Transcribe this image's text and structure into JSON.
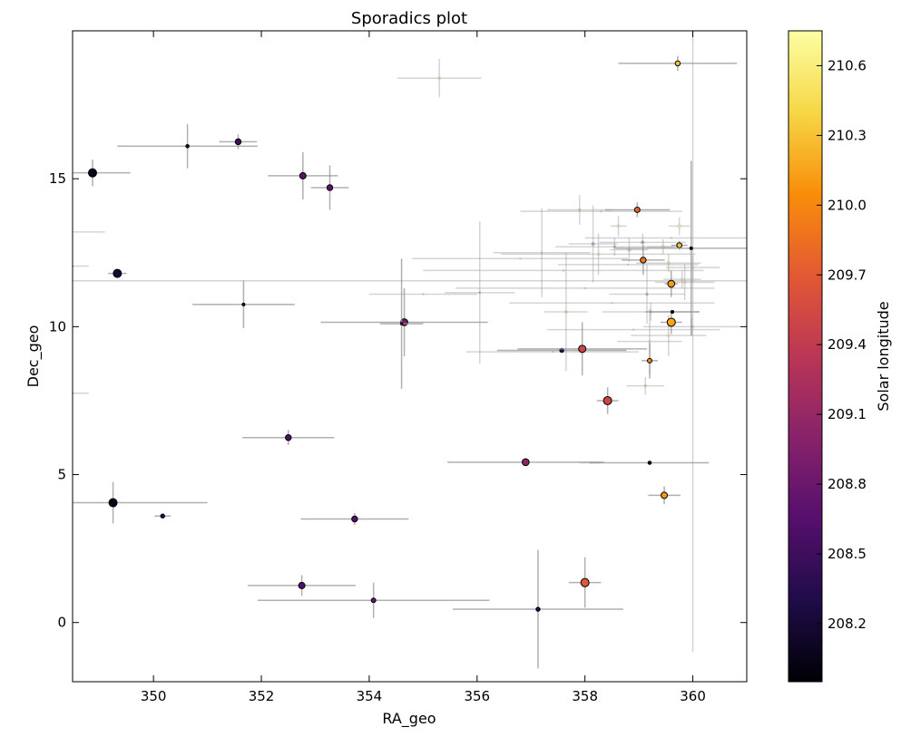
{
  "chart_data": {
    "type": "scatter",
    "title": "Sporadics plot",
    "xlabel": "RA_geo",
    "ylabel": "Dec_geo",
    "xlim": [
      348.5,
      361.0
    ],
    "ylim": [
      -2.0,
      20.0
    ],
    "xticks": [
      "350",
      "352",
      "354",
      "356",
      "358",
      "360"
    ],
    "yticks": [
      "0",
      "5",
      "10",
      "15"
    ],
    "colorbar": {
      "label": "Solar longitude",
      "range": [
        207.95,
        210.75
      ],
      "ticks": [
        "208.2",
        "208.5",
        "208.8",
        "209.1",
        "209.4",
        "209.7",
        "210.0",
        "210.3",
        "210.6"
      ]
    },
    "points": [
      {
        "ra": 348.87,
        "dec": 15.2,
        "sl": 208.05,
        "size": 4.5,
        "xerr": 0.7,
        "yerr": 0.45,
        "faint": false
      },
      {
        "ra": 349.33,
        "dec": 11.8,
        "sl": 208.2,
        "size": 4.5,
        "xerr": 0.17,
        "yerr": 0.0,
        "faint": false
      },
      {
        "ra": 349.25,
        "dec": 4.05,
        "sl": 208.05,
        "size": 4.5,
        "xerr": 1.75,
        "yerr": 0.7,
        "faint": false
      },
      {
        "ra": 350.17,
        "dec": 3.6,
        "sl": 208.3,
        "size": 2.2,
        "xerr": 0.15,
        "yerr": 0.0,
        "faint": false
      },
      {
        "ra": 350.63,
        "dec": 16.1,
        "sl": 208.3,
        "size": 1.8,
        "xerr": 1.3,
        "yerr": 0.75,
        "faint": false
      },
      {
        "ra": 351.57,
        "dec": 16.25,
        "sl": 208.5,
        "size": 3.2,
        "xerr": 0.35,
        "yerr": 0.25,
        "faint": false
      },
      {
        "ra": 351.67,
        "dec": 10.75,
        "sl": 208.3,
        "size": 1.5,
        "xerr": 0.95,
        "yerr": 0.8,
        "faint": false
      },
      {
        "ra": 352.5,
        "dec": 6.25,
        "sl": 208.6,
        "size": 3.2,
        "xerr": 0.85,
        "yerr": 0.25,
        "faint": false
      },
      {
        "ra": 352.77,
        "dec": 15.1,
        "sl": 208.7,
        "size": 3.5,
        "xerr": 0.65,
        "yerr": 0.8,
        "faint": false
      },
      {
        "ra": 352.75,
        "dec": 1.25,
        "sl": 208.65,
        "size": 3.5,
        "xerr": 1.0,
        "yerr": 0.35,
        "faint": false
      },
      {
        "ra": 353.27,
        "dec": 14.7,
        "sl": 208.7,
        "size": 3.2,
        "xerr": 0.35,
        "yerr": 0.75,
        "faint": false
      },
      {
        "ra": 353.73,
        "dec": 3.5,
        "sl": 208.65,
        "size": 3.2,
        "xerr": 1.0,
        "yerr": 0.2,
        "faint": false
      },
      {
        "ra": 354.08,
        "dec": 0.75,
        "sl": 208.75,
        "size": 2.5,
        "xerr": 2.15,
        "yerr": 0.6,
        "faint": false
      },
      {
        "ra": 354.65,
        "dec": 10.15,
        "sl": 208.85,
        "size": 3.8,
        "xerr": 1.55,
        "yerr": 1.15,
        "faint": false
      },
      {
        "ra": 354.6,
        "dec": 10.1,
        "sl": 208.9,
        "size": 1.2,
        "xerr": 0.4,
        "yerr": 2.2,
        "faint": false
      },
      {
        "ra": 356.9,
        "dec": 5.42,
        "sl": 209.05,
        "size": 3.8,
        "xerr": 1.45,
        "yerr": 0.1,
        "faint": false
      },
      {
        "ra": 357.13,
        "dec": 0.45,
        "sl": 208.3,
        "size": 2.2,
        "xerr": 1.58,
        "yerr": 2.0,
        "faint": false
      },
      {
        "ra": 357.57,
        "dec": 9.2,
        "sl": 208.3,
        "size": 2.2,
        "xerr": 1.2,
        "yerr": 0.0,
        "faint": false
      },
      {
        "ra": 357.95,
        "dec": 9.25,
        "sl": 209.5,
        "size": 4.0,
        "xerr": 1.2,
        "yerr": 0.9,
        "faint": false
      },
      {
        "ra": 358.0,
        "dec": 1.35,
        "sl": 209.7,
        "size": 4.5,
        "xerr": 0.3,
        "yerr": 0.85,
        "faint": false
      },
      {
        "ra": 358.42,
        "dec": 7.5,
        "sl": 209.5,
        "size": 4.5,
        "xerr": 0.2,
        "yerr": 0.45,
        "faint": false
      },
      {
        "ra": 358.97,
        "dec": 13.95,
        "sl": 209.75,
        "size": 3.0,
        "xerr": 0.6,
        "yerr": 0.25,
        "faint": false
      },
      {
        "ra": 359.08,
        "dec": 12.25,
        "sl": 209.9,
        "size": 3.2,
        "xerr": 0.4,
        "yerr": 0.5,
        "faint": false
      },
      {
        "ra": 359.2,
        "dec": 8.85,
        "sl": 210.0,
        "size": 2.5,
        "xerr": 0.15,
        "yerr": 0.6,
        "faint": false
      },
      {
        "ra": 359.2,
        "dec": 5.4,
        "sl": 208.2,
        "size": 1.8,
        "xerr": 1.1,
        "yerr": 0.0,
        "faint": false
      },
      {
        "ra": 359.47,
        "dec": 4.3,
        "sl": 210.1,
        "size": 3.5,
        "xerr": 0.3,
        "yerr": 0.3,
        "faint": false
      },
      {
        "ra": 359.6,
        "dec": 11.45,
        "sl": 210.1,
        "size": 3.8,
        "xerr": 0.12,
        "yerr": 0.45,
        "faint": false
      },
      {
        "ra": 359.6,
        "dec": 10.15,
        "sl": 210.15,
        "size": 4.5,
        "xerr": 0.2,
        "yerr": 0.4,
        "faint": false
      },
      {
        "ra": 359.62,
        "dec": 10.5,
        "sl": 208.1,
        "size": 1.6,
        "xerr": 0.5,
        "yerr": 0.0,
        "faint": false
      },
      {
        "ra": 359.72,
        "dec": 18.9,
        "sl": 210.3,
        "size": 2.8,
        "xerr": 1.1,
        "yerr": 0.25,
        "faint": false
      },
      {
        "ra": 359.75,
        "dec": 12.75,
        "sl": 210.3,
        "size": 2.8,
        "xerr": 0.15,
        "yerr": 0.15,
        "faint": false
      },
      {
        "ra": 359.97,
        "dec": 12.65,
        "sl": 208.2,
        "size": 1.5,
        "xerr": 1.4,
        "yerr": 2.95,
        "faint": false
      },
      {
        "ra": 355.3,
        "dec": 18.4,
        "sl": 210.3,
        "size": 1.5,
        "xerr": 0.78,
        "yerr": 0.65,
        "faint": true
      },
      {
        "ra": 356.05,
        "dec": 11.15,
        "sl": 209.2,
        "size": 1.2,
        "xerr": 0.65,
        "yerr": 2.4,
        "faint": true
      },
      {
        "ra": 357.2,
        "dec": 12.5,
        "sl": 210.2,
        "size": 1.2,
        "xerr": 0.9,
        "yerr": 1.5,
        "faint": true
      },
      {
        "ra": 357.65,
        "dec": 10.5,
        "sl": 209.9,
        "size": 1.5,
        "xerr": 0.4,
        "yerr": 2.0,
        "faint": true
      },
      {
        "ra": 357.9,
        "dec": 13.95,
        "sl": 210.1,
        "size": 1.5,
        "xerr": 0.6,
        "yerr": 0.5,
        "faint": true
      },
      {
        "ra": 358.15,
        "dec": 12.8,
        "sl": 209.0,
        "size": 1.8,
        "xerr": 0.45,
        "yerr": 1.3,
        "faint": true
      },
      {
        "ra": 358.25,
        "dec": 12.45,
        "sl": 210.5,
        "size": 1.5,
        "xerr": 1.8,
        "yerr": 0.7,
        "faint": true
      },
      {
        "ra": 358.62,
        "dec": 13.4,
        "sl": 210.6,
        "size": 1.8,
        "xerr": 0.15,
        "yerr": 0.35,
        "faint": true
      },
      {
        "ra": 358.55,
        "dec": 12.7,
        "sl": 209.5,
        "size": 1.6,
        "xerr": 1.1,
        "yerr": 0.3,
        "faint": true
      },
      {
        "ra": 358.82,
        "dec": 12.6,
        "sl": 209.8,
        "size": 1.8,
        "xerr": 0.35,
        "yerr": 0.4,
        "faint": true
      },
      {
        "ra": 359.07,
        "dec": 12.85,
        "sl": 208.9,
        "size": 1.8,
        "xerr": 0.8,
        "yerr": 0.3,
        "faint": true
      },
      {
        "ra": 359.15,
        "dec": 11.1,
        "sl": 209.3,
        "size": 1.5,
        "xerr": 0.7,
        "yerr": 1.0,
        "faint": true
      },
      {
        "ra": 359.22,
        "dec": 10.5,
        "sl": 209.8,
        "size": 1.5,
        "xerr": 0.9,
        "yerr": 0.3,
        "faint": true
      },
      {
        "ra": 359.2,
        "dec": 9.5,
        "sl": 210.5,
        "size": 1.5,
        "xerr": 0.6,
        "yerr": 1.1,
        "faint": true
      },
      {
        "ra": 359.12,
        "dec": 8.0,
        "sl": 210.2,
        "size": 1.5,
        "xerr": 0.35,
        "yerr": 0.3,
        "faint": true
      },
      {
        "ra": 359.45,
        "dec": 12.7,
        "sl": 210.3,
        "size": 1.6,
        "xerr": 0.3,
        "yerr": 0.25,
        "faint": true
      },
      {
        "ra": 359.55,
        "dec": 12.15,
        "sl": 210.4,
        "size": 1.8,
        "xerr": 0.6,
        "yerr": 0.3,
        "faint": true
      },
      {
        "ra": 359.75,
        "dec": 13.4,
        "sl": 210.65,
        "size": 2.2,
        "xerr": 0.2,
        "yerr": 0.3,
        "faint": true
      },
      {
        "ra": 359.85,
        "dec": 11.5,
        "sl": 210.5,
        "size": 1.5,
        "xerr": 0.55,
        "yerr": 0.6,
        "faint": true
      },
      {
        "ra": 359.8,
        "dec": 11.6,
        "sl": 210.6,
        "size": 1.5,
        "xerr": 0.35,
        "yerr": 0.3,
        "faint": true
      },
      {
        "ra": 360.0,
        "dec": 12.0,
        "sl": 210.55,
        "size": 1.5,
        "xerr": 0.5,
        "yerr": 0.4,
        "faint": true
      },
      {
        "ra": 359.98,
        "dec": 10.0,
        "sl": 210.4,
        "size": 1.2,
        "xerr": 0.9,
        "yerr": 0.3,
        "faint": true
      },
      {
        "ra": 359.55,
        "dec": 9.7,
        "sl": 210.6,
        "size": 1.5,
        "xerr": 0.7,
        "yerr": 0.7,
        "faint": true
      },
      {
        "ra": 356.8,
        "dec": 12.3,
        "sl": 210.2,
        "size": 1.0,
        "xerr": 2.0,
        "yerr": 0.0,
        "faint": true
      },
      {
        "ra": 357.6,
        "dec": 11.9,
        "sl": 210.0,
        "size": 1.0,
        "xerr": 2.6,
        "yerr": 0.0,
        "faint": true
      },
      {
        "ra": 358.0,
        "dec": 11.3,
        "sl": 210.1,
        "size": 1.0,
        "xerr": 2.4,
        "yerr": 0.0,
        "faint": true
      },
      {
        "ra": 358.5,
        "dec": 10.8,
        "sl": 210.2,
        "size": 1.0,
        "xerr": 1.9,
        "yerr": 0.0,
        "faint": true
      },
      {
        "ra": 358.9,
        "dec": 9.9,
        "sl": 210.3,
        "size": 1.0,
        "xerr": 1.6,
        "yerr": 0.0,
        "faint": true
      },
      {
        "ra": 357.4,
        "dec": 9.15,
        "sl": 210.0,
        "size": 1.0,
        "xerr": 1.6,
        "yerr": 0.0,
        "faint": true
      },
      {
        "ra": 358.3,
        "dec": 13.9,
        "sl": 210.1,
        "size": 1.0,
        "xerr": 1.5,
        "yerr": 0.0,
        "faint": true
      },
      {
        "ra": 358.8,
        "dec": 12.1,
        "sl": 210.2,
        "size": 1.0,
        "xerr": 1.3,
        "yerr": 0.0,
        "faint": true
      },
      {
        "ra": 359.6,
        "dec": 13.0,
        "sl": 210.3,
        "size": 1.0,
        "xerr": 1.6,
        "yerr": 0.0,
        "faint": true
      },
      {
        "ra": 360.0,
        "dec": 11.55,
        "sl": 210.4,
        "size": 1.0,
        "xerr": 11.6,
        "yerr": 0.0,
        "faint": true
      },
      {
        "ra": 348.4,
        "dec": 13.2,
        "sl": 210.0,
        "size": 1.0,
        "xerr": 0.7,
        "yerr": 0.0,
        "faint": true
      },
      {
        "ra": 348.5,
        "dec": 12.05,
        "sl": 210.0,
        "size": 1.0,
        "xerr": 0.3,
        "yerr": 0.0,
        "faint": true
      },
      {
        "ra": 348.5,
        "dec": 7.75,
        "sl": 210.0,
        "size": 1.0,
        "xerr": 0.3,
        "yerr": 0.0,
        "faint": true
      },
      {
        "ra": 355.0,
        "dec": 11.1,
        "sl": 210.0,
        "size": 1.0,
        "xerr": 1.0,
        "yerr": 0.0,
        "faint": true
      },
      {
        "ra": 360.0,
        "dec": 10.0,
        "sl": 210.0,
        "size": 1.0,
        "xerr": 0.0,
        "yerr": 11.0,
        "faint": true
      },
      {
        "ra": 358.1,
        "dec": 5.4,
        "sl": 210.0,
        "size": 1.0,
        "xerr": 0.2,
        "yerr": 0.0,
        "faint": true
      }
    ]
  }
}
